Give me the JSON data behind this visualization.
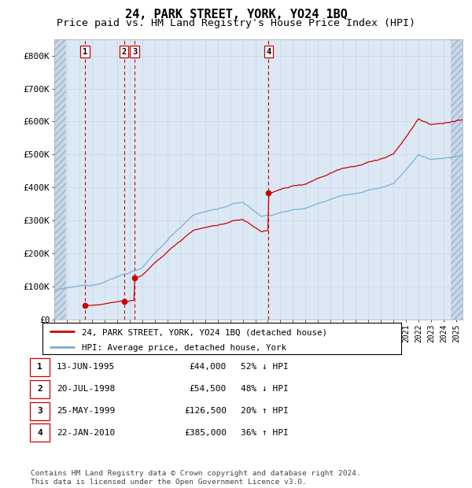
{
  "title": "24, PARK STREET, YORK, YO24 1BQ",
  "subtitle": "Price paid vs. HM Land Registry's House Price Index (HPI)",
  "ylim": [
    0,
    850000
  ],
  "yticks": [
    0,
    100000,
    200000,
    300000,
    400000,
    500000,
    600000,
    700000,
    800000
  ],
  "ytick_labels": [
    "£0",
    "£100K",
    "£200K",
    "£300K",
    "£400K",
    "£500K",
    "£600K",
    "£700K",
    "£800K"
  ],
  "xmin": 1993.0,
  "xmax": 2025.5,
  "hatch_right_start": 2024.58,
  "sales": [
    {
      "label": "1",
      "date": "13-JUN-1995",
      "year": 1995.45,
      "price": 44000,
      "pct": "52% ↓ HPI"
    },
    {
      "label": "2",
      "date": "20-JUL-1998",
      "year": 1998.55,
      "price": 54500,
      "pct": "48% ↓ HPI"
    },
    {
      "label": "3",
      "date": "25-MAY-1999",
      "year": 1999.4,
      "price": 126500,
      "pct": "20% ↑ HPI"
    },
    {
      "label": "4",
      "date": "22-JAN-2010",
      "year": 2010.06,
      "price": 385000,
      "pct": "36% ↑ HPI"
    }
  ],
  "hpi_color": "#7bafd4",
  "price_color": "#cc0000",
  "vline_color": "#cc0000",
  "grid_color": "#c8d8e8",
  "bg_color": "#dce9f5",
  "hatch_bg": "#c8d8e8",
  "title_fontsize": 11,
  "subtitle_fontsize": 9.5,
  "legend_line1": "24, PARK STREET, YORK, YO24 1BQ (detached house)",
  "legend_line2": "HPI: Average price, detached house, York",
  "footer_text": "Contains HM Land Registry data © Crown copyright and database right 2024.\nThis data is licensed under the Open Government Licence v3.0."
}
